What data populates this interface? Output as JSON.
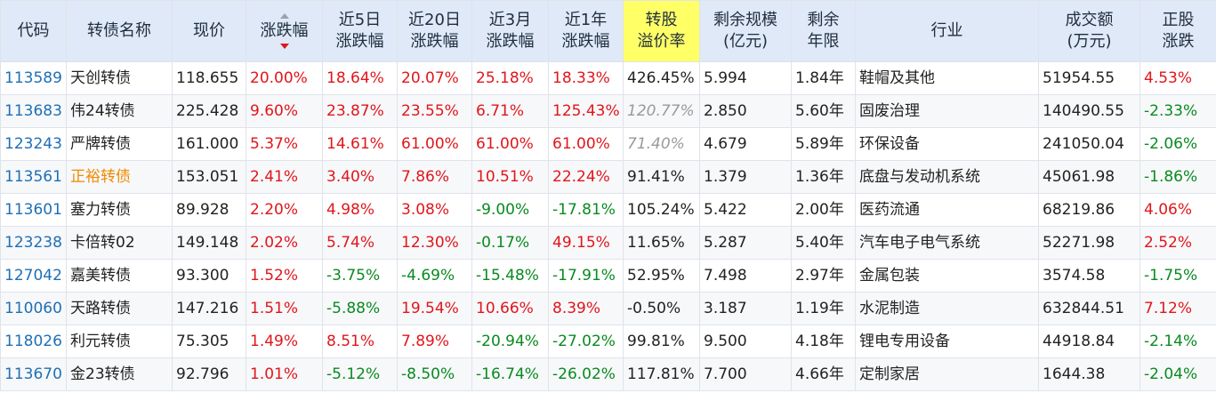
{
  "columns": [
    {
      "label": "代码"
    },
    {
      "label": "转债名称"
    },
    {
      "label": "现价"
    },
    {
      "label": "涨跌幅",
      "sorted": "desc"
    },
    {
      "label": "近5日\n涨跌幅"
    },
    {
      "label": "近20日\n涨跌幅"
    },
    {
      "label": "近3月\n涨跌幅"
    },
    {
      "label": "近1年\n涨跌幅"
    },
    {
      "label": "转股\n溢价率",
      "highlight": "#ffff66"
    },
    {
      "label": "剩余规模\n(亿元)"
    },
    {
      "label": "剩余\n年限"
    },
    {
      "label": "行业"
    },
    {
      "label": "成交额\n(万元)"
    },
    {
      "label": "正股\n涨跌"
    }
  ],
  "rows": [
    [
      "113589",
      "天创转债",
      "118.655",
      "20.00%",
      "18.64%",
      "20.07%",
      "25.18%",
      "18.33%",
      "426.45%",
      "5.994",
      "1.84年",
      "鞋帽及其他",
      "51954.55",
      "4.53%"
    ],
    [
      "113683",
      "伟24转债",
      "225.428",
      "9.60%",
      "23.87%",
      "23.55%",
      "6.71%",
      "125.43%",
      "120.77%",
      "2.850",
      "5.60年",
      "固废治理",
      "140490.55",
      "-2.33%"
    ],
    [
      "123243",
      "严牌转债",
      "161.000",
      "5.37%",
      "14.61%",
      "61.00%",
      "61.00%",
      "61.00%",
      "71.40%",
      "4.679",
      "5.89年",
      "环保设备",
      "241050.04",
      "-2.06%"
    ],
    [
      "113561",
      "正裕转债",
      "153.051",
      "2.41%",
      "3.40%",
      "7.86%",
      "10.51%",
      "22.24%",
      "91.41%",
      "1.379",
      "1.36年",
      "底盘与发动机系统",
      "45061.98",
      "-1.86%"
    ],
    [
      "113601",
      "塞力转债",
      "89.928",
      "2.20%",
      "4.98%",
      "3.08%",
      "-9.00%",
      "-17.81%",
      "105.24%",
      "5.422",
      "2.00年",
      "医药流通",
      "68219.86",
      "4.06%"
    ],
    [
      "123238",
      "卡倍转02",
      "149.148",
      "2.02%",
      "5.74%",
      "12.30%",
      "-0.17%",
      "49.15%",
      "11.65%",
      "5.287",
      "5.40年",
      "汽车电子电气系统",
      "52271.98",
      "2.52%"
    ],
    [
      "127042",
      "嘉美转债",
      "93.300",
      "1.52%",
      "-3.75%",
      "-4.69%",
      "-15.48%",
      "-17.91%",
      "52.95%",
      "7.498",
      "2.97年",
      "金属包装",
      "3574.58",
      "-1.75%"
    ],
    [
      "110060",
      "天路转债",
      "147.216",
      "1.51%",
      "-5.88%",
      "19.54%",
      "10.66%",
      "8.39%",
      "-0.50%",
      "3.187",
      "1.19年",
      "水泥制造",
      "632844.51",
      "7.12%"
    ],
    [
      "118026",
      "利元转债",
      "75.305",
      "1.49%",
      "8.51%",
      "7.89%",
      "-20.94%",
      "-27.02%",
      "99.81%",
      "9.500",
      "4.18年",
      "锂电专用设备",
      "44918.84",
      "-2.14%"
    ],
    [
      "113670",
      "金23转债",
      "92.796",
      "1.01%",
      "-5.12%",
      "-8.50%",
      "-16.74%",
      "-26.02%",
      "117.81%",
      "7.700",
      "4.66年",
      "定制家居",
      "1644.38",
      "-2.04%"
    ]
  ],
  "italic_premium_rows": [
    1,
    2
  ],
  "orange_name_rows": [
    3
  ],
  "colors": {
    "up": "#e0161b",
    "down": "#098a20",
    "code": "#1f6fb5",
    "name_highlight": "#ef8a00",
    "header_bg": "#dfe9f7",
    "premium_header": "#ffff66"
  }
}
